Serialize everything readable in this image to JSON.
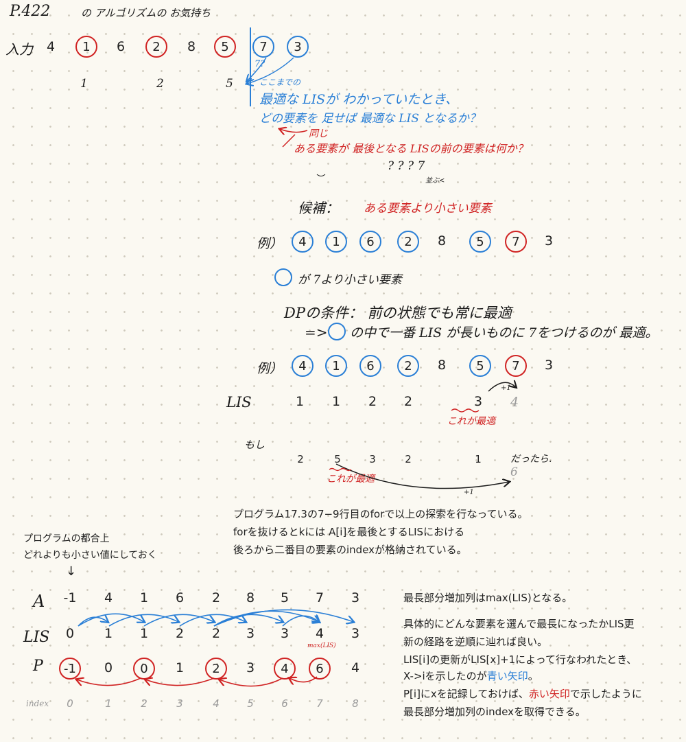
{
  "header": {
    "page": "P.422",
    "title": "の アルゴリズムの お気持ち"
  },
  "input_row": {
    "label": "入力",
    "values": [
      "4",
      "1",
      "6",
      "2",
      "8",
      "5",
      "7",
      "3"
    ],
    "lis_hint": [
      "1",
      "2",
      "5"
    ],
    "question": "7?"
  },
  "notes": {
    "n1_a": "ここまでの",
    "n1_b": "最適な LISが わかっていたとき、",
    "n1_c": "どの要素を 足せば 最適な LIS となるか？",
    "same": "同じ",
    "red_q": "ある要素が 最後となる LISの前の要素は何か？",
    "q_marks": "? ? ? 7",
    "narabu": "並ぶ<",
    "candidate_label": "候補：",
    "candidate_text": "ある要素より小さい要素",
    "ex_label": "例）",
    "circle_note": "が 7より小さい要素",
    "dp_label": "DPの条件： 前の状態でも常に最適",
    "dp_arrow": "=>",
    "dp_text": "の中で一番 LIS が長いものに 7をつけるのが 最適。",
    "lis_label": "LIS",
    "plus1": "+1",
    "kore_ga": "これが最適",
    "moshi": "もし",
    "dattara": "だったら.",
    "kore_ga2": "これが最適"
  },
  "example1": {
    "values": [
      "4",
      "1",
      "6",
      "2",
      "8",
      "5",
      "7",
      "3"
    ]
  },
  "example2": {
    "values": [
      "4",
      "1",
      "6",
      "2",
      "8",
      "5",
      "7",
      "3"
    ],
    "lis": [
      "1",
      "1",
      "2",
      "2",
      "",
      "3",
      "4",
      ""
    ]
  },
  "moshi_row": {
    "values": [
      "2",
      "5",
      "3",
      "2",
      "1"
    ],
    "result": "6"
  },
  "program_note": [
    "プログラム17.3の7−9行目のforで以上の探索を行なっている。",
    "forを抜けるとkには A[i]を最後とするLISにおける",
    "後ろから二番目の要素のindexが格納されている。"
  ],
  "sentinel_note": [
    "プログラムの都合上",
    "どれよりも小さい値にしておく"
  ],
  "table": {
    "row_labels": {
      "a": "A",
      "lis": "LIS",
      "p": "P",
      "index": "index"
    },
    "A": [
      "-1",
      "4",
      "1",
      "6",
      "2",
      "8",
      "5",
      "7",
      "3"
    ],
    "LIS": [
      "0",
      "1",
      "1",
      "2",
      "2",
      "3",
      "3",
      "4",
      "3"
    ],
    "P": [
      "-1",
      "0",
      "0",
      "1",
      "2",
      "3",
      "4",
      "6",
      "4"
    ],
    "index": [
      "0",
      "1",
      "2",
      "3",
      "4",
      "5",
      "6",
      "7",
      "8"
    ],
    "max_label": "max(LIS)"
  },
  "right_note": {
    "p1": "最長部分増加列はmax(LIS)となる。",
    "p2a": "具体的にどんな要素を選んで最長になったかLIS更",
    "p2b": "新の経路を逆順に辿れば良い。",
    "p2c": "LIS[i]の更新がLIS[x]+1によって行なわれたとき、",
    "p2d_pre": "X->iを示したのが",
    "p2d_blue": "青い矢印",
    "p2d_post": "。",
    "p2e_pre": "P[i]にxを記録しておけば、",
    "p2e_red": "赤い矢印",
    "p2e_post": "で示したように",
    "p2f": "最長部分増加列のindexを取得できる。"
  },
  "colors": {
    "blue": "#2a7fd6",
    "red": "#d02323",
    "ink": "#1b1b1b",
    "gray": "#9a9a9a"
  }
}
